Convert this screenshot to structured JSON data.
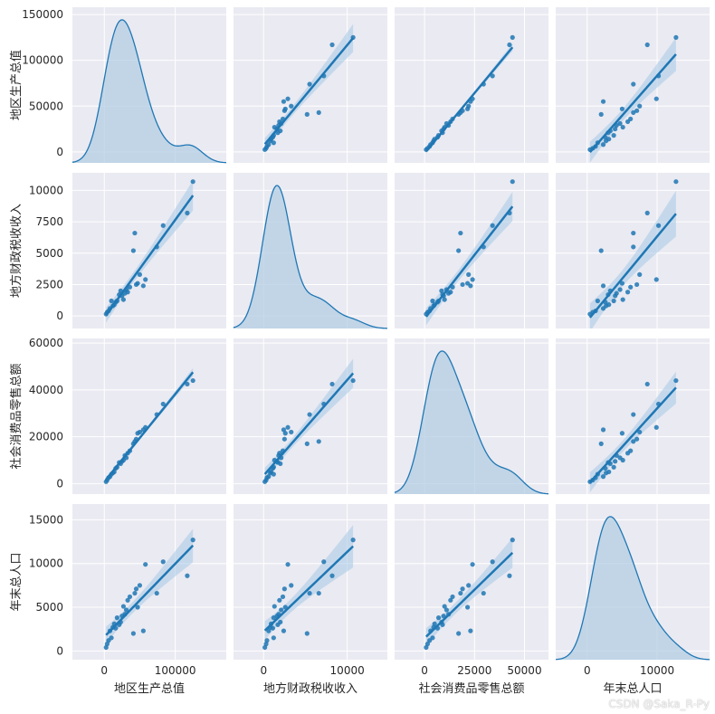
{
  "chart_data": {
    "type": "pairplot",
    "variables": [
      "地区生产总值",
      "地方财政税收收入",
      "社会消费品零售总额",
      "年末总人口"
    ],
    "diag_kind": "kde",
    "off_diag_kind": "reg",
    "grid": true,
    "colors": {
      "points": "#1f77b4",
      "line": "#1f77b4",
      "band": "#a6c8e6",
      "kde_fill": "#b3cde3",
      "panel_bg": "#eaeaf2"
    },
    "axes": [
      {
        "name": "地区生产总值",
        "lim": [
          -45000,
          172000
        ],
        "ticks": [
          0,
          100000
        ],
        "tick_labels": [
          "0",
          "100000"
        ],
        "row_lim": [
          -12000,
          158000
        ],
        "row_ticks": [
          0,
          50000,
          100000,
          150000
        ],
        "row_tick_labels": [
          "0",
          "50000",
          "100000",
          "150000"
        ]
      },
      {
        "name": "地方财政税收收入",
        "lim": [
          -3600,
          14800
        ],
        "ticks": [
          0,
          10000
        ],
        "tick_labels": [
          "0",
          "10000"
        ],
        "row_lim": [
          -1000,
          11400
        ],
        "row_ticks": [
          0,
          2500,
          5000,
          7500,
          10000
        ],
        "row_tick_labels": [
          "0",
          "2500",
          "5000",
          "7500",
          "10000"
        ]
      },
      {
        "name": "社会消费品零售总额",
        "lim": [
          -15000,
          62000
        ],
        "ticks": [
          0,
          25000,
          50000
        ],
        "tick_labels": [
          "0",
          "25000",
          "50000"
        ],
        "row_lim": [
          -4500,
          62000
        ],
        "row_ticks": [
          0,
          20000,
          40000,
          60000
        ],
        "row_tick_labels": [
          "0",
          "20000",
          "40000",
          "60000"
        ]
      },
      {
        "name": "年末总人口",
        "lim": [
          -4500,
          17500
        ],
        "ticks": [
          0,
          10000
        ],
        "tick_labels": [
          "0",
          "10000"
        ],
        "row_lim": [
          -1000,
          16800
        ],
        "row_ticks": [
          0,
          5000,
          10000,
          15000
        ],
        "row_tick_labels": [
          "0",
          "5000",
          "10000",
          "15000"
        ]
      }
    ],
    "points": [
      [
        125000,
        10700,
        44000,
        12700
      ],
      [
        117000,
        8200,
        42500,
        8600
      ],
      [
        83000,
        7200,
        34000,
        10200
      ],
      [
        74000,
        5500,
        29500,
        6600
      ],
      [
        58000,
        2900,
        24000,
        9900
      ],
      [
        55000,
        2400,
        23000,
        2300
      ],
      [
        50000,
        3300,
        22000,
        7500
      ],
      [
        47000,
        2600,
        21500,
        5000
      ],
      [
        45000,
        2500,
        19000,
        7100
      ],
      [
        43000,
        6600,
        18000,
        6600
      ],
      [
        41000,
        5200,
        17000,
        2000
      ],
      [
        36000,
        2300,
        14000,
        6200
      ],
      [
        33000,
        1900,
        13000,
        5800
      ],
      [
        31000,
        2100,
        11000,
        4700
      ],
      [
        29000,
        1800,
        12000,
        4200
      ],
      [
        27000,
        1300,
        10000,
        5100
      ],
      [
        25000,
        1600,
        9500,
        4000
      ],
      [
        23000,
        2000,
        8500,
        3300
      ],
      [
        21000,
        1700,
        9000,
        3000
      ],
      [
        18000,
        1200,
        7000,
        3800
      ],
      [
        16000,
        1100,
        6500,
        2600
      ],
      [
        14000,
        900,
        5000,
        3100
      ],
      [
        12000,
        800,
        4500,
        2700
      ],
      [
        10000,
        1200,
        4000,
        1500
      ],
      [
        8000,
        600,
        3000,
        2300
      ],
      [
        6000,
        400,
        2500,
        1200
      ],
      [
        4000,
        300,
        1500,
        800
      ],
      [
        2500,
        150,
        800,
        400
      ]
    ]
  }
}
